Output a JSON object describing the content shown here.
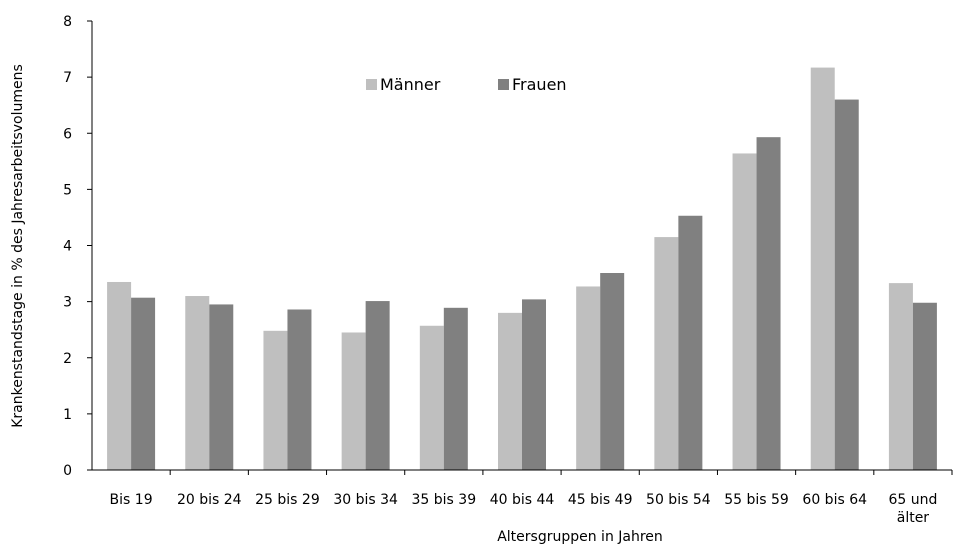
{
  "chart_data": {
    "type": "bar",
    "title": "",
    "xlabel": "Altersgruppen in Jahren",
    "ylabel": "Krankenstandstage in % des Jahresarbeitsvolumens",
    "ylim": [
      0,
      8
    ],
    "yticks": [
      0,
      1,
      2,
      3,
      4,
      5,
      6,
      7,
      8
    ],
    "grid": false,
    "legend_position": "top-center",
    "categories": [
      [
        "Bis 19"
      ],
      [
        "20 bis 24"
      ],
      [
        "25 bis 29"
      ],
      [
        "30 bis 34"
      ],
      [
        "35 bis 39"
      ],
      [
        "40 bis 44"
      ],
      [
        "45 bis 49"
      ],
      [
        "50 bis 54"
      ],
      [
        "55 bis 59"
      ],
      [
        "60 bis 64"
      ],
      [
        "65 und",
        "älter"
      ]
    ],
    "series": [
      {
        "name": "Männer",
        "color": "#bfbfbf",
        "values": [
          3.35,
          3.1,
          2.48,
          2.45,
          2.57,
          2.8,
          3.27,
          4.15,
          5.64,
          7.17,
          3.33
        ]
      },
      {
        "name": "Frauen",
        "color": "#808080",
        "values": [
          3.07,
          2.95,
          2.86,
          3.01,
          2.89,
          3.04,
          3.51,
          4.53,
          5.93,
          6.6,
          2.98
        ]
      }
    ]
  }
}
